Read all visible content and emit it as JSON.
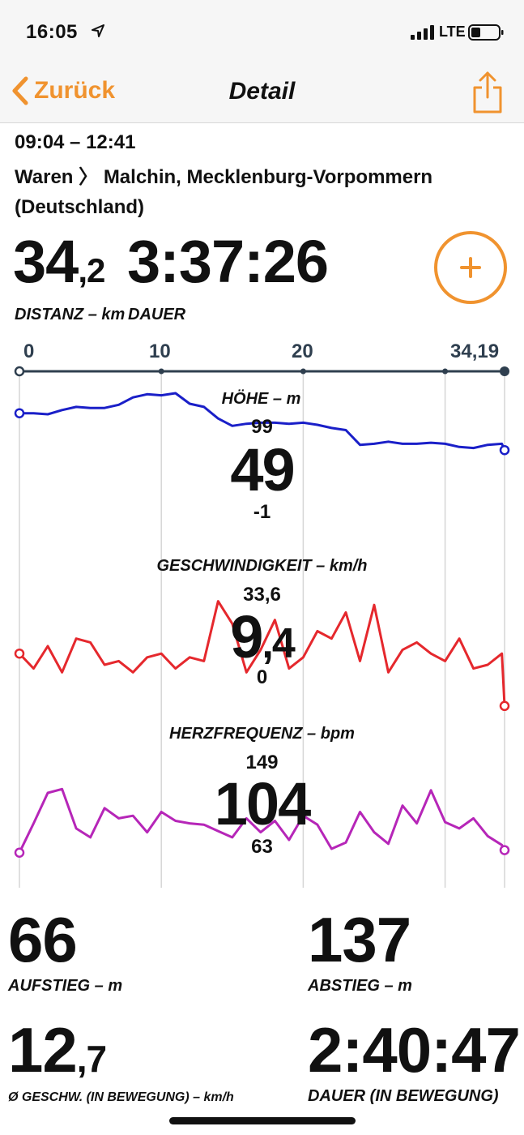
{
  "status": {
    "time": "16:05",
    "network": "LTE"
  },
  "nav": {
    "back_label": "Zurück",
    "title": "Detail"
  },
  "route": {
    "time_range": "09:04 – 12:41",
    "from": "Waren",
    "separator": "〉",
    "to": "Malchin, Mecklenburg-Vorpommern",
    "country": "(Deutschland)"
  },
  "summary": {
    "distance_int": "34",
    "distance_dec": ",2",
    "distance_caption": "DISTANZ – km",
    "duration": "3:37:26",
    "duration_caption": "DAUER"
  },
  "distance_axis": {
    "ticks": [
      "0",
      "10",
      "20",
      "34,19"
    ],
    "tick_values": [
      0,
      10,
      20,
      34.19
    ],
    "max": 34.19
  },
  "chart_data": [
    {
      "type": "line",
      "title": "HÖHE – m",
      "color": "#1a1fc8",
      "max_label": "99",
      "min_label": "-1",
      "current": "49",
      "ylim": [
        -1,
        99
      ],
      "x": [
        0,
        1,
        2,
        3,
        4,
        5,
        6,
        7,
        8,
        9,
        10,
        11,
        12,
        13,
        14,
        15,
        16,
        17,
        18,
        19,
        20,
        21,
        22,
        23,
        24,
        25,
        26,
        27,
        28,
        29,
        30,
        31,
        32,
        33,
        34,
        34.19
      ],
      "values": [
        80,
        80,
        79,
        83,
        86,
        85,
        85,
        88,
        95,
        98,
        97,
        99,
        89,
        86,
        75,
        68,
        70,
        71,
        71,
        70,
        71,
        69,
        66,
        64,
        50,
        51,
        53,
        51,
        51,
        52,
        51,
        48,
        47,
        50,
        51,
        45
      ]
    },
    {
      "type": "line",
      "title": "GESCHWINDIGKEIT – km/h",
      "color": "#e5282d",
      "max_label": "33,6",
      "min_label": "0",
      "current_int": "9",
      "current_dec": ",4",
      "ylim": [
        0,
        33.6
      ],
      "x": [
        0,
        1,
        2,
        3,
        4,
        5,
        6,
        7,
        8,
        9,
        10,
        11,
        12,
        13,
        14,
        15,
        16,
        17,
        18,
        19,
        20,
        21,
        22,
        23,
        24,
        25,
        26,
        27,
        28,
        29,
        30,
        31,
        32,
        33,
        34,
        34.19
      ],
      "values": [
        16,
        12,
        18,
        11,
        20,
        19,
        13,
        14,
        11,
        15,
        16,
        12,
        15,
        14,
        30,
        24,
        11,
        17,
        25,
        12,
        15,
        22,
        20,
        27,
        14,
        29,
        11,
        17,
        19,
        16,
        14,
        20,
        12,
        13,
        16,
        2
      ]
    },
    {
      "type": "line",
      "title": "HERZFREQUENZ – bpm",
      "color": "#b626b8",
      "max_label": "149",
      "min_label": "63",
      "current": "104",
      "ylim": [
        63,
        149
      ],
      "x": [
        0,
        1,
        2,
        3,
        4,
        5,
        6,
        7,
        8,
        9,
        10,
        11,
        12,
        13,
        14,
        15,
        16,
        17,
        18,
        19,
        20,
        21,
        22,
        23,
        24,
        25,
        26,
        27,
        28,
        29,
        30,
        31,
        32,
        33,
        34,
        34.19
      ],
      "values": [
        81,
        104,
        128,
        131,
        100,
        93,
        116,
        108,
        110,
        97,
        113,
        106,
        104,
        103,
        98,
        93,
        108,
        97,
        106,
        91,
        110,
        103,
        84,
        89,
        113,
        97,
        88,
        118,
        104,
        130,
        105,
        100,
        108,
        94,
        87,
        83
      ]
    }
  ],
  "stats": {
    "ascent": "66",
    "ascent_caption": "AUFSTIEG – m",
    "descent": "137",
    "descent_caption": "ABSTIEG – m",
    "avg_speed_int": "12",
    "avg_speed_dec": ",7",
    "avg_speed_caption": "Ø GESCHW. (IN BEWEGUNG) – km/h",
    "moving_duration": "2:40:47",
    "moving_duration_caption": "DAUER (IN BEWEGUNG)"
  },
  "colors": {
    "accent": "#f0932f",
    "axis": "#2f3f4f"
  }
}
